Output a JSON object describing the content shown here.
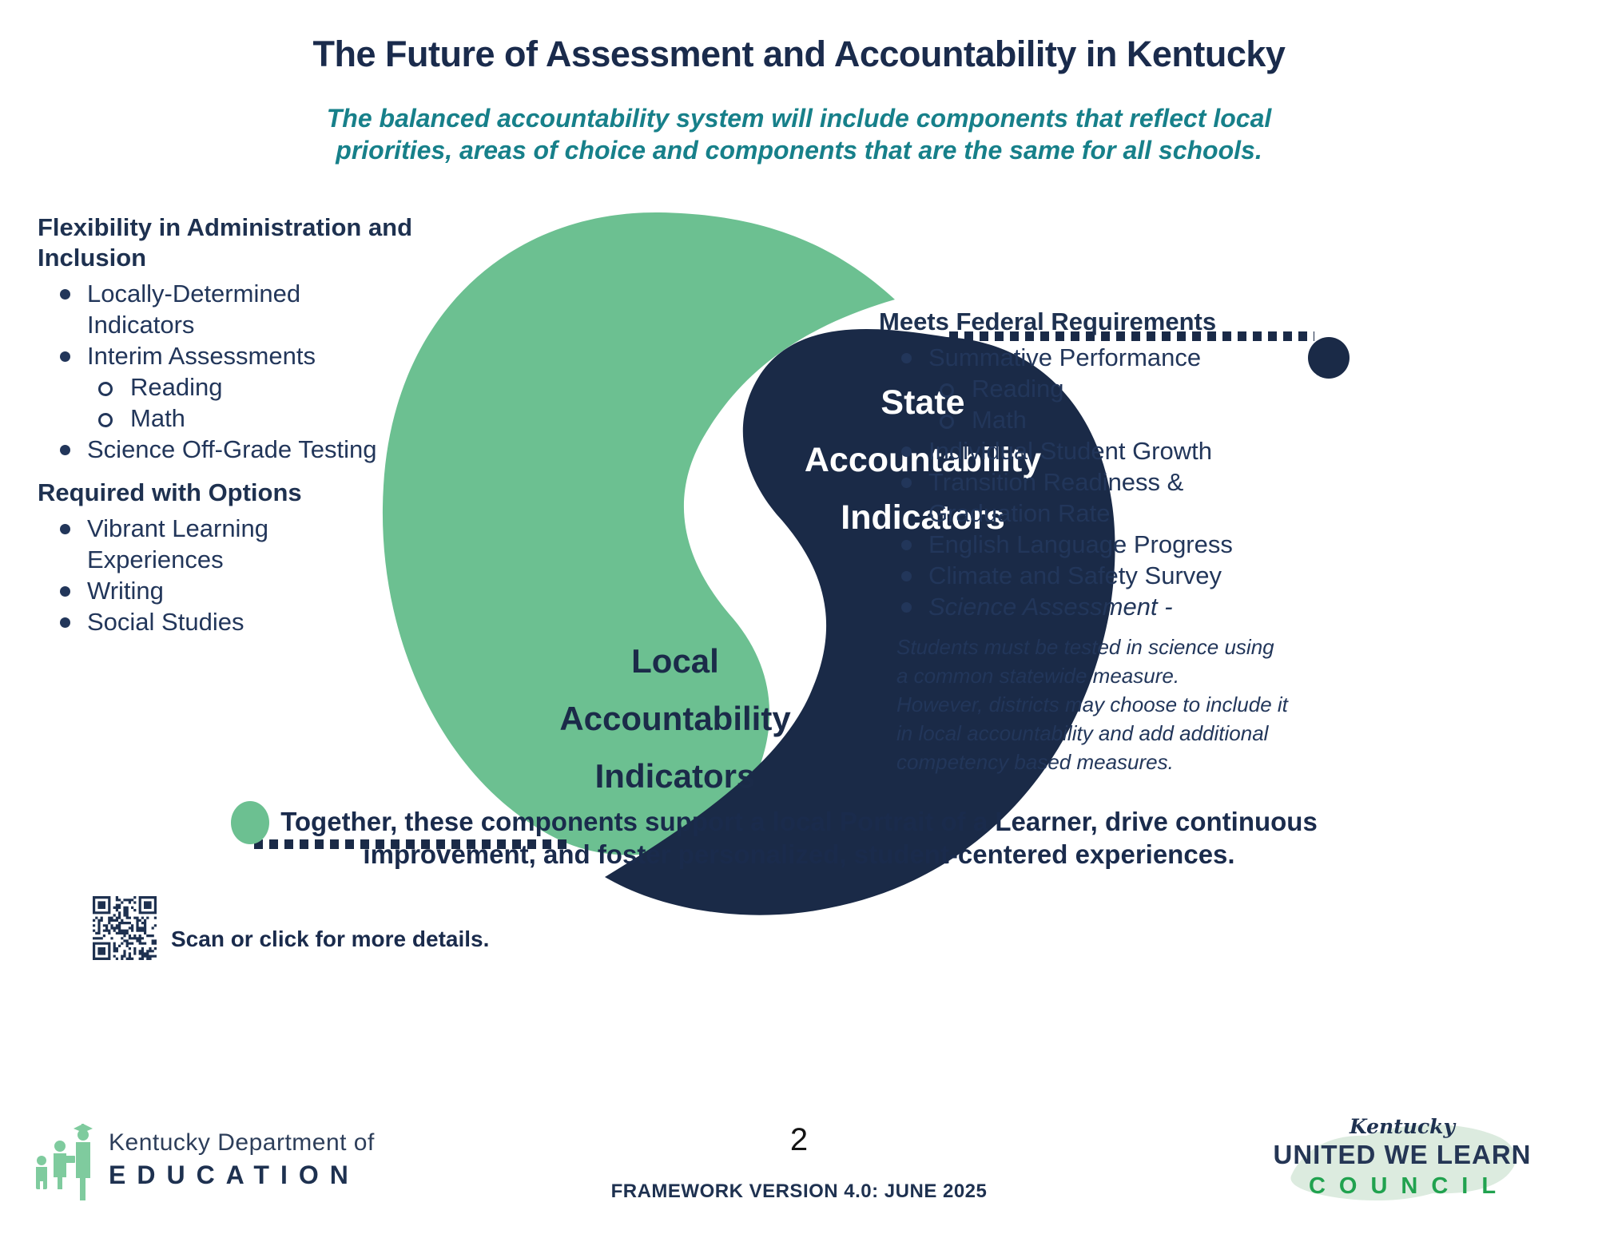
{
  "page": {
    "title": "The Future of Assessment and Accountability in Kentucky",
    "subtitle": "The balanced accountability system will include components that reflect local\npriorities, areas of choice and components that are the same for all schools."
  },
  "left_panel": {
    "heading1": "Flexibility in Administration and Inclusion",
    "items1": [
      "Locally-Determined Indicators",
      "Interim Assessments",
      "Reading",
      "Math",
      "Science Off-Grade Testing"
    ],
    "heading2": "Required with Options",
    "items2": [
      "Vibrant Learning Experiences",
      "Writing",
      "Social Studies"
    ]
  },
  "diagram": {
    "local_label": "Local Accountability Indicators",
    "state_label": "State Accountability Indicators",
    "local_color": "#6cc091",
    "state_color": "#1a2a47"
  },
  "right_panel": {
    "heading": "Meets Federal Requirements",
    "items": [
      "Summative Performance",
      "Reading",
      "Math",
      "Individual Student Growth",
      "Transition Readiness & Graduation Rate",
      "English Language Progress",
      "Climate and Safety Survey",
      "Science Assessment -"
    ],
    "note": "Students must be tested in science using a common statewide measure.\nHowever, districts may choose to include it in local accountability and add additional competency based measures."
  },
  "qr": {
    "caption": "Scan or click for more details."
  },
  "closing": "Together, these components support a local Portrait of a Learner, drive continuous\nimprovement, and foster personalized, student-centered experiences.",
  "footer": {
    "kde_line1": "Kentucky Department of",
    "kde_line2": "EDUCATION",
    "page_number": "2",
    "version": "FRAMEWORK VERSION 4.0: JUNE 2025",
    "council_script": "Kentucky",
    "council_line1": "UNITED WE LEARN",
    "council_line2": "COUNCIL",
    "council_green": "#21a24f",
    "logo_green": "#7fcb9e"
  }
}
